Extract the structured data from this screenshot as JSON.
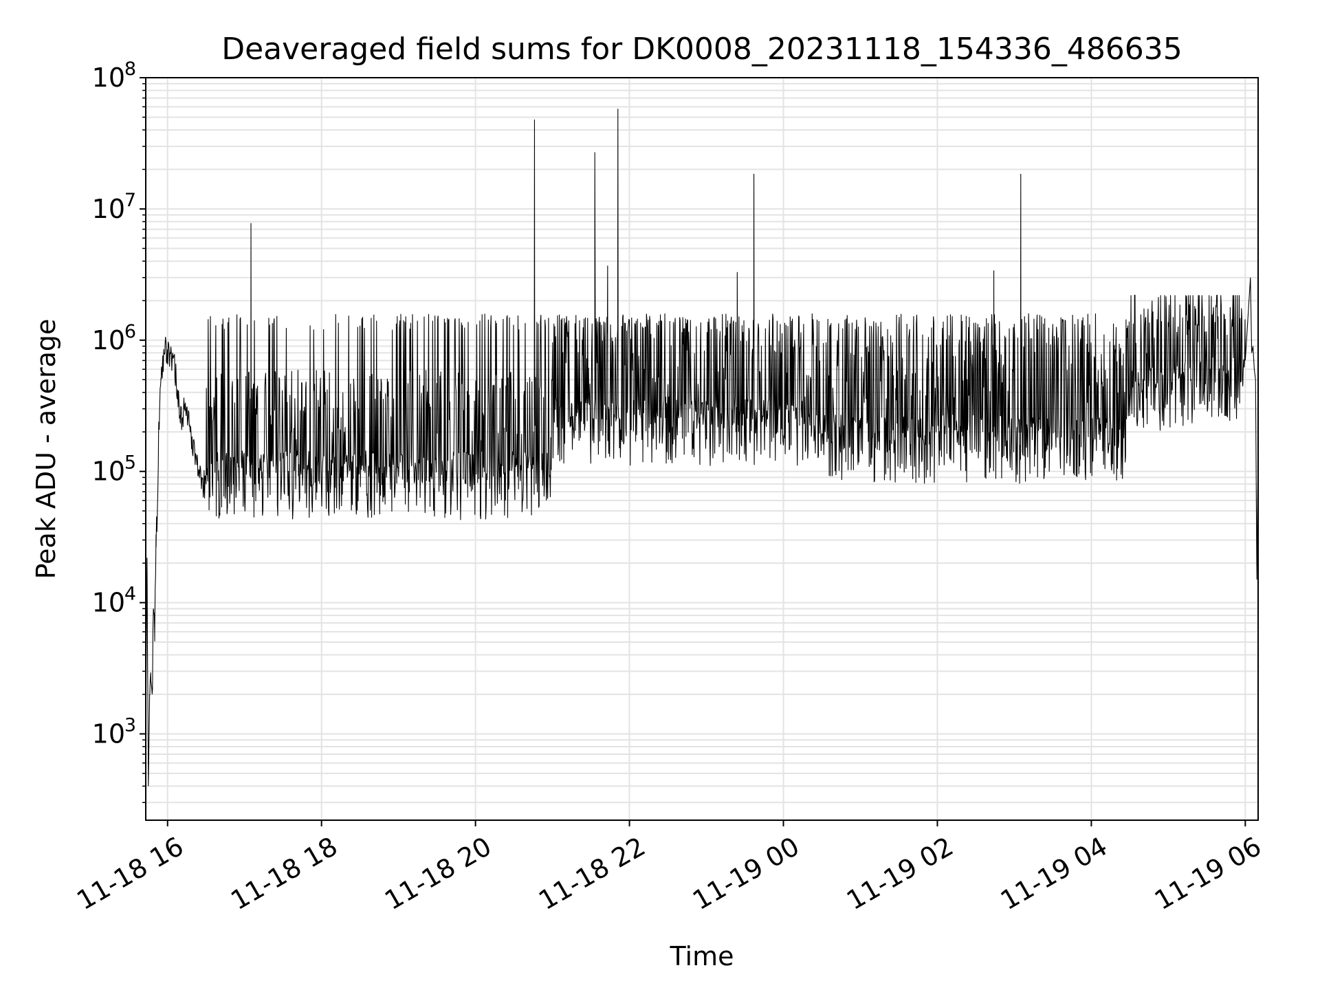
{
  "chart_data": {
    "type": "line",
    "title": "Deaveraged field sums for DK0008_20231118_154336_486635",
    "xlabel": "Time",
    "ylabel": "Peak ADU - average",
    "yscale": "log",
    "ylim": [
      220,
      100000000
    ],
    "xlim": [
      "2023-11-18T15:43",
      "2023-11-19T06:10"
    ],
    "grid": true,
    "line_color": "#000000",
    "grid_color": "#e3e3e3",
    "x_ticks": [
      {
        "t": "2023-11-18T16:00",
        "label": "11-18 16"
      },
      {
        "t": "2023-11-18T18:00",
        "label": "11-18 18"
      },
      {
        "t": "2023-11-18T20:00",
        "label": "11-18 20"
      },
      {
        "t": "2023-11-18T22:00",
        "label": "11-18 22"
      },
      {
        "t": "2023-11-19T00:00",
        "label": "11-19 00"
      },
      {
        "t": "2023-11-19T02:00",
        "label": "11-19 02"
      },
      {
        "t": "2023-11-19T04:00",
        "label": "11-19 04"
      },
      {
        "t": "2023-11-19T06:00",
        "label": "11-19 06"
      }
    ],
    "y_ticks": [
      {
        "v": 1000,
        "mantissa": "10",
        "exp": "3"
      },
      {
        "v": 10000,
        "mantissa": "10",
        "exp": "4"
      },
      {
        "v": 100000,
        "mantissa": "10",
        "exp": "5"
      },
      {
        "v": 1000000,
        "mantissa": "10",
        "exp": "6"
      },
      {
        "v": 10000000,
        "mantissa": "10",
        "exp": "7"
      },
      {
        "v": 100000000,
        "mantissa": "10",
        "exp": "8"
      }
    ],
    "series": [
      {
        "x": [
          "2023-11-18T15:43",
          "2023-11-18T15:44",
          "2023-11-18T15:45",
          "2023-11-18T15:46",
          "2023-11-18T15:47",
          "2023-11-18T15:48",
          "2023-11-18T15:49",
          "2023-11-18T15:50",
          "2023-11-18T15:51",
          "2023-11-18T15:52",
          "2023-11-18T15:53",
          "2023-11-18T15:54",
          "2023-11-18T15:55",
          "2023-11-18T15:56",
          "2023-11-18T15:57",
          "2023-11-18T15:58",
          "2023-11-18T15:59",
          "2023-11-18T16:00",
          "2023-11-18T16:02",
          "2023-11-18T16:05",
          "2023-11-18T16:08",
          "2023-11-18T16:10",
          "2023-11-18T16:13",
          "2023-11-18T16:16",
          "2023-11-18T16:20",
          "2023-11-18T16:25",
          "2023-11-18T16:30",
          "2023-11-18T17:04",
          "2023-11-18T17:05",
          "2023-11-18T17:06",
          "2023-11-18T20:45",
          "2023-11-18T20:46",
          "2023-11-18T20:47",
          "2023-11-18T20:48",
          "2023-11-18T21:32",
          "2023-11-18T21:33",
          "2023-11-18T21:34",
          "2023-11-18T21:42",
          "2023-11-18T21:43",
          "2023-11-18T21:44",
          "2023-11-18T21:50",
          "2023-11-18T21:51",
          "2023-11-18T21:52",
          "2023-11-18T23:23",
          "2023-11-18T23:24",
          "2023-11-18T23:25",
          "2023-11-18T23:36",
          "2023-11-18T23:37",
          "2023-11-18T23:38",
          "2023-11-19T02:43",
          "2023-11-19T02:44",
          "2023-11-19T02:45",
          "2023-11-19T03:04",
          "2023-11-19T03:05",
          "2023-11-19T03:06",
          "2023-11-19T06:00",
          "2023-11-19T06:04",
          "2023-11-19T06:05",
          "2023-11-19T06:06",
          "2023-11-19T06:07",
          "2023-11-19T06:08",
          "2023-11-19T06:09",
          "2023-11-19T06:10"
        ],
        "y": [
          900,
          22000,
          400,
          2000,
          2500,
          2000,
          9000,
          6000,
          33000,
          45000,
          200000,
          350000,
          500000,
          650000,
          800000,
          850000,
          900000,
          850000,
          800000,
          750000,
          400000,
          250000,
          300000,
          250000,
          150000,
          90000,
          80000,
          120000,
          7800000,
          110000,
          120000,
          48000000,
          120000,
          150000,
          250000,
          27000000,
          250000,
          300000,
          3700000,
          300000,
          250000,
          58000000,
          250000,
          200000,
          3300000,
          200000,
          250000,
          18500000,
          200000,
          200000,
          3400000,
          200000,
          250000,
          18500000,
          250000,
          700000,
          3000000,
          800000,
          900000,
          600000,
          500000,
          15000,
          150000
        ]
      }
    ]
  }
}
